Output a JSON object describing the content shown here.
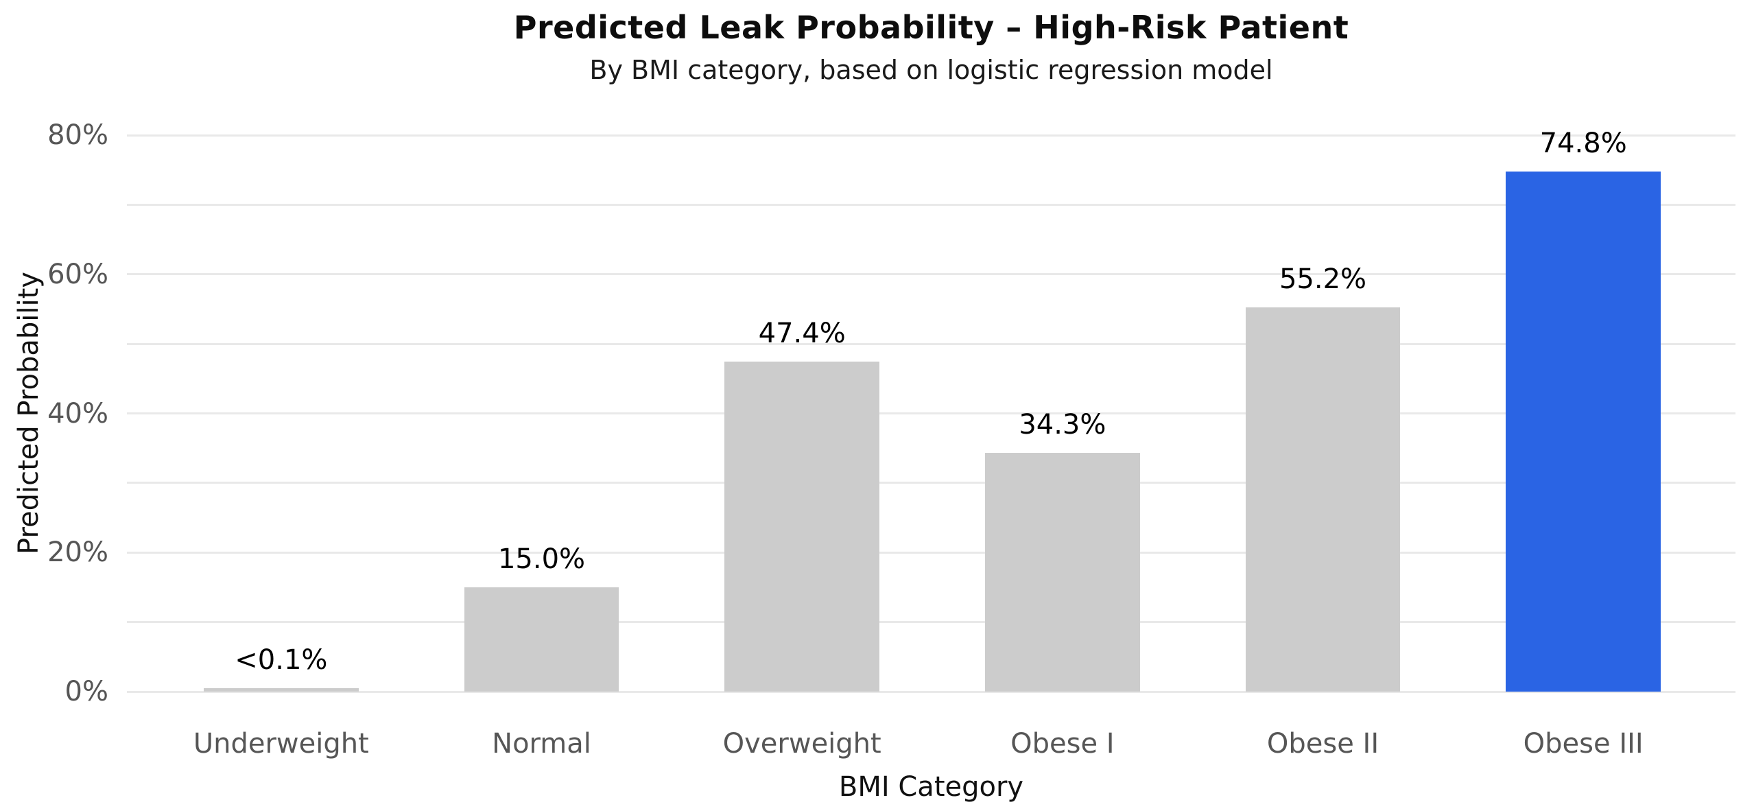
{
  "chart_data": {
    "type": "bar",
    "title": "Predicted Leak Probability – High-Risk Patient",
    "subtitle": "By BMI category, based on logistic regression model",
    "xlabel": "BMI Category",
    "ylabel": "Predicted Probability",
    "categories": [
      "Underweight",
      "Normal",
      "Overweight",
      "Obese I",
      "Obese II",
      "Obese III"
    ],
    "values": [
      0.05,
      15.0,
      47.4,
      34.3,
      55.2,
      74.8
    ],
    "bar_labels": [
      "<0.1%",
      "15.0%",
      "47.4%",
      "34.3%",
      "55.2%",
      "74.8%"
    ],
    "highlight_index": 5,
    "ylim": [
      0,
      80
    ],
    "ytick_major_step": 20,
    "ytick_minor_step": 10,
    "ytick_labels": [
      "0%",
      "20%",
      "40%",
      "60%",
      "80%"
    ],
    "grid": true,
    "legend": false,
    "colors": {
      "bar_default": "#CCCCCC",
      "bar_highlight": "#2A64E4",
      "gridline": "#E9E9E9",
      "tick_text": "#565656",
      "text_dark": "#111111",
      "value_text": "#000000",
      "background": "#FFFFFF"
    }
  }
}
